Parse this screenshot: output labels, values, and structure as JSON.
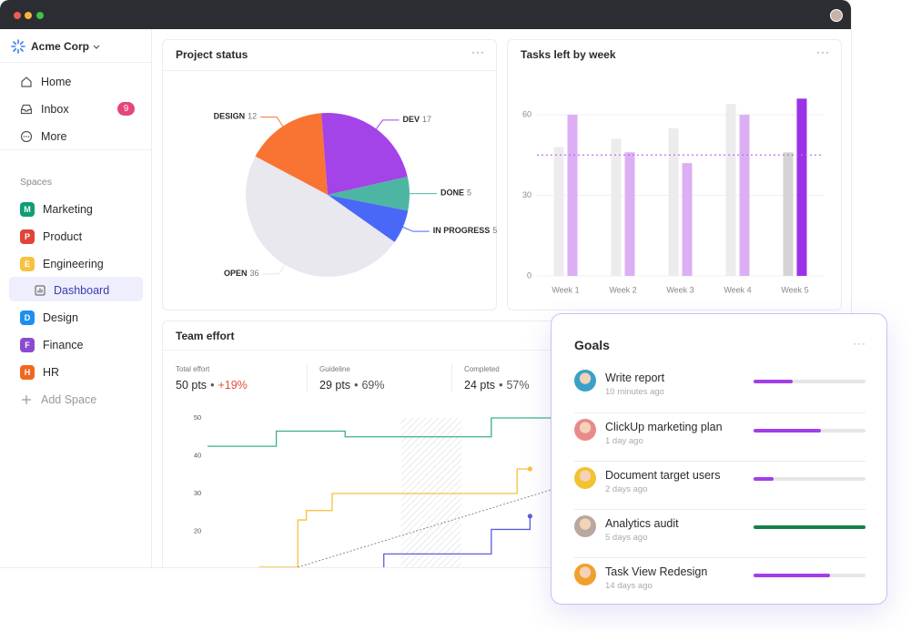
{
  "window": {
    "company": "Acme Corp"
  },
  "sidebar": {
    "nav": [
      {
        "label": "Home"
      },
      {
        "label": "Inbox",
        "badge": 9
      },
      {
        "label": "More"
      }
    ],
    "spaces_heading": "Spaces",
    "spaces": [
      {
        "letter": "M",
        "label": "Marketing",
        "color": "#0f9d77"
      },
      {
        "letter": "P",
        "label": "Product",
        "color": "#e0443a"
      },
      {
        "letter": "E",
        "label": "Engineering",
        "color": "#f8c141"
      },
      {
        "label": "Dashboard",
        "active": true
      },
      {
        "letter": "D",
        "label": "Design",
        "color": "#1d8ff0"
      },
      {
        "letter": "F",
        "label": "Finance",
        "color": "#8a4bcf"
      },
      {
        "letter": "H",
        "label": "HR",
        "color": "#f0681f"
      }
    ],
    "add_space": "Add Space"
  },
  "chart_data": [
    {
      "type": "pie",
      "title": "Project status",
      "categories": [
        "DESIGN",
        "DEV",
        "DONE",
        "IN PROGRESS",
        "OPEN"
      ],
      "values": [
        12,
        17,
        5,
        5,
        36
      ],
      "colors": [
        "#f97432",
        "#a443e8",
        "#4cb6a3",
        "#4a68f7",
        "#e8e8ee"
      ]
    },
    {
      "type": "bar",
      "title": "Tasks left by week",
      "categories": [
        "Week 1",
        "Week 2",
        "Week 3",
        "Week 4",
        "Week 5"
      ],
      "series": [
        {
          "values": [
            48,
            51,
            55,
            64,
            46
          ],
          "colors": [
            "#ececef",
            "#ececef",
            "#ececef",
            "#ececef",
            "#d4d4d4"
          ]
        },
        {
          "values": [
            60,
            46,
            42,
            60,
            66
          ],
          "colors": [
            "#dcaff5",
            "#dcaff5",
            "#dcaff5",
            "#dcaff5",
            "#9b32e8"
          ]
        }
      ],
      "ylim": [
        0,
        75
      ],
      "yticks": [
        0,
        30,
        60
      ],
      "grid": true,
      "reference_line": 45,
      "reference_color": "#c36ae8"
    },
    {
      "type": "line",
      "title": "Team effort",
      "xlim": [
        0,
        40
      ],
      "ylim": [
        10,
        50
      ],
      "yticks": [
        20,
        30,
        40,
        50
      ],
      "shaded_range": [
        22.5,
        29.5
      ],
      "series": [
        {
          "x": [
            0,
            8,
            16,
            33,
            40
          ],
          "values": [
            42.5,
            46.5,
            45,
            50,
            50
          ],
          "color": "#3daf8e",
          "step": true
        },
        {
          "x": [
            6,
            10.5,
            11.5,
            14.5,
            36,
            37.5
          ],
          "values": [
            10.5,
            23,
            25.5,
            30,
            36.5,
            36.5
          ],
          "color": "#f5c242",
          "step": true,
          "end_marker": true
        },
        {
          "x": [
            20.5,
            20.5,
            33,
            37.5
          ],
          "values": [
            10,
            14,
            20.5,
            24
          ],
          "color": "#5a5fe0",
          "step": true,
          "end_marker": true
        },
        {
          "x": [
            10.5,
            40
          ],
          "values": [
            10.5,
            31
          ],
          "color": "#8a8a8a",
          "dashed": true
        }
      ]
    }
  ],
  "team_effort_stats": [
    {
      "label": "Total effort",
      "value": "50 pts",
      "change": "+19%",
      "change_color": "#e04f3c"
    },
    {
      "label": "Guideline",
      "value": "29 pts",
      "change": "69%",
      "change_color": "#555555"
    },
    {
      "label": "Completed",
      "value": "24 pts",
      "change": "57%",
      "change_color": "#555555"
    }
  ],
  "goals": {
    "title": "Goals",
    "items": [
      {
        "name": "Write report",
        "time": "10 minutes ago",
        "progress": 35,
        "color": "#a23ee8",
        "avatar": "#3aa0c8"
      },
      {
        "name": "ClickUp marketing plan",
        "time": "1 day ago",
        "progress": 60,
        "color": "#a23ee8",
        "avatar": "#e98a8a"
      },
      {
        "name": "Document target users",
        "time": "2 days ago",
        "progress": 18,
        "color": "#a23ee8",
        "avatar": "#f2c230"
      },
      {
        "name": "Analytics audit",
        "time": "5 days ago",
        "progress": 100,
        "color": "#168049",
        "avatar": "#b9a8a0"
      },
      {
        "name": "Task View Redesign",
        "time": "14 days ago",
        "progress": 68,
        "color": "#a23ee8",
        "avatar": "#f0a02c"
      }
    ]
  }
}
